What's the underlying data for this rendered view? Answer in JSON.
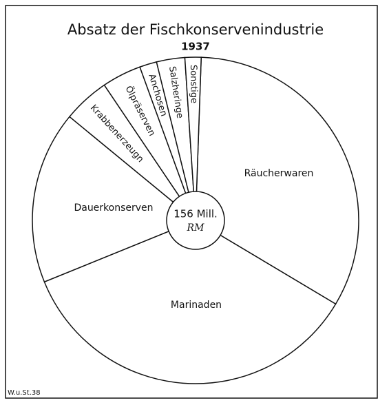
{
  "chart_data": {
    "type": "pie",
    "title": "Absatz der Fischkonservenindustrie",
    "subtitle": "1937",
    "center_label": [
      "156 Mill.",
      "RM"
    ],
    "categories": [
      "Räucherwaren",
      "Marinaden",
      "Dauerkonserven",
      "Krabbenerzeugn",
      "Ölpräserven",
      "Anchosen",
      "Salzheringe",
      "Sonstige"
    ],
    "values": [
      33,
      35.3,
      17.1,
      4.6,
      3.9,
      1.7,
      2.8,
      1.6
    ],
    "color": "#ffffff",
    "source": "W.u.St.38"
  }
}
